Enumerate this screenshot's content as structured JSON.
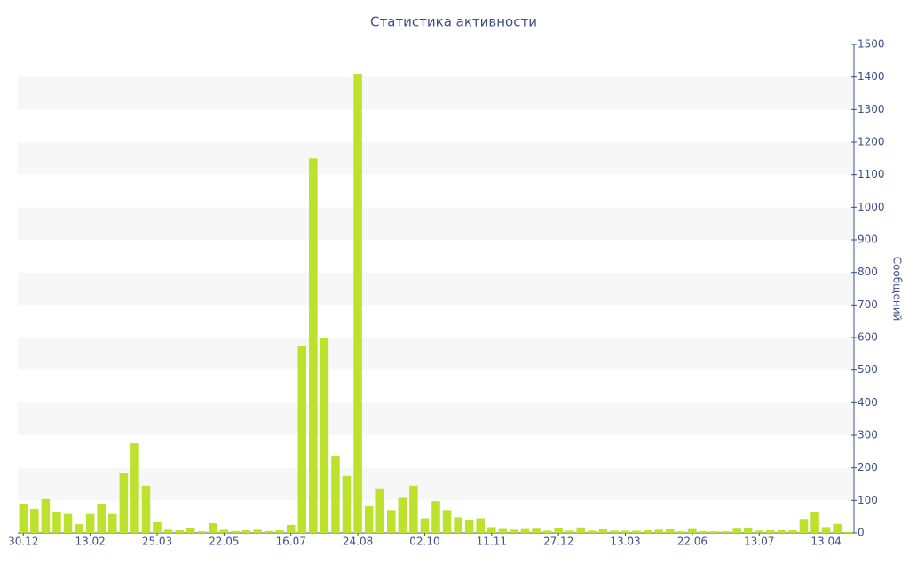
{
  "chart_data": {
    "type": "bar",
    "title": "Статистика активности",
    "y_label": "Сообщений",
    "categories": [
      "30.12",
      null,
      null,
      null,
      null,
      null,
      "13.02",
      null,
      null,
      null,
      null,
      null,
      "25.03",
      null,
      null,
      null,
      null,
      null,
      "22.05",
      null,
      null,
      null,
      null,
      null,
      "16.07",
      null,
      null,
      null,
      null,
      null,
      "24.08",
      null,
      null,
      null,
      null,
      null,
      "02.10",
      null,
      null,
      null,
      null,
      null,
      "11.11",
      null,
      null,
      null,
      null,
      null,
      "27.12",
      null,
      null,
      null,
      null,
      null,
      "13.03",
      null,
      null,
      null,
      null,
      null,
      "22.06",
      null,
      null,
      null,
      null,
      null,
      "13.07",
      null,
      null,
      null,
      null,
      null,
      "13.04",
      null,
      null
    ],
    "values": [
      88,
      74,
      104,
      65,
      58,
      27,
      58,
      90,
      58,
      185,
      275,
      145,
      33,
      10,
      8,
      15,
      5,
      30,
      10,
      6,
      8,
      10,
      6,
      8,
      25,
      573,
      1150,
      598,
      237,
      175,
      1410,
      82,
      137,
      70,
      108,
      145,
      45,
      98,
      70,
      48,
      40,
      45,
      18,
      12,
      10,
      12,
      13,
      7,
      15,
      7,
      17,
      7,
      11,
      7,
      7,
      7,
      8,
      10,
      11,
      5,
      12,
      6,
      5,
      5,
      13,
      14,
      7,
      8,
      8,
      8,
      43,
      63,
      18,
      28,
      3
    ],
    "color": "#bde22e",
    "ylim": [
      0,
      1500
    ],
    "yticks": [
      0,
      100,
      200,
      300,
      400,
      500,
      600,
      700,
      800,
      900,
      1000,
      1100,
      1200,
      1300,
      1400,
      1500
    ],
    "grid": "banded",
    "y_axis_side": "right"
  }
}
